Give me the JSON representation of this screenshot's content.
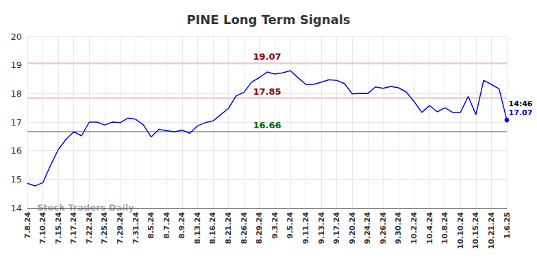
{
  "chart_data": {
    "type": "line",
    "title": "PINE Long Term Signals",
    "watermark": "Stock Traders Daily",
    "end_note": "14:46",
    "categories": [
      "7.8.24",
      null,
      "7.10.24",
      null,
      "7.15.24",
      null,
      "7.17.24",
      null,
      "7.22.24",
      null,
      "7.25.24",
      null,
      "7.29.24",
      null,
      "7.31.24",
      null,
      "8.5.24",
      null,
      "8.7.24",
      null,
      "8.9.24",
      null,
      "8.13.24",
      null,
      "8.16.24",
      null,
      "8.21.24",
      null,
      "8.26.24",
      null,
      "8.29.24",
      null,
      "9.3.24",
      null,
      "9.5.24",
      null,
      "9.11.24",
      null,
      "9.13.24",
      null,
      "9.17.24",
      null,
      "9.20.24",
      null,
      "9.24.24",
      null,
      "9.26.24",
      null,
      "9.30.24",
      null,
      "10.2.24",
      null,
      "10.4.24",
      null,
      "10.8.24",
      null,
      "10.10.24",
      null,
      "10.15.24",
      null,
      "10.21.24",
      null,
      "1.6.25"
    ],
    "values": [
      14.86,
      14.77,
      14.88,
      15.49,
      16.04,
      16.4,
      16.66,
      16.52,
      17.0,
      17.0,
      16.9,
      17.0,
      16.98,
      17.14,
      17.1,
      16.9,
      16.48,
      16.74,
      16.7,
      16.66,
      16.72,
      16.61,
      16.87,
      16.98,
      17.04,
      17.26,
      17.48,
      17.92,
      18.04,
      18.4,
      18.56,
      18.75,
      18.68,
      18.72,
      18.8,
      18.55,
      18.32,
      18.32,
      18.4,
      18.48,
      18.46,
      18.35,
      17.99,
      18.0,
      18.0,
      18.23,
      18.18,
      18.25,
      18.2,
      18.05,
      17.72,
      17.34,
      17.58,
      17.36,
      17.5,
      17.34,
      17.34,
      17.9,
      17.26,
      18.46,
      18.32,
      18.16,
      17.07
    ],
    "color": "#0000ee",
    "levels": [
      {
        "value": 19.07,
        "color": "#8b0000"
      },
      {
        "value": 17.85,
        "color": "#8b0000"
      },
      {
        "value": 16.66,
        "color": "#006400"
      }
    ],
    "ylim": [
      14,
      20
    ],
    "yticks": [
      14,
      15,
      16,
      17,
      18,
      19,
      20
    ],
    "grid": true
  }
}
